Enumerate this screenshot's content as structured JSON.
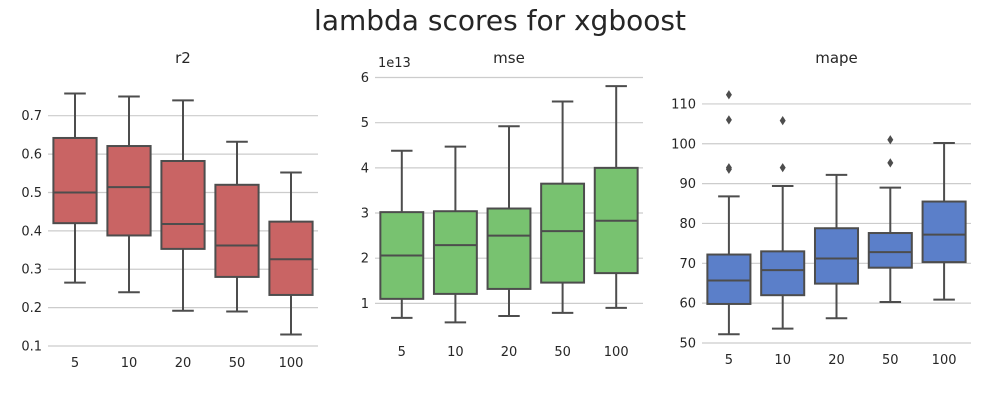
{
  "figure": {
    "title": "lambda scores for xgboost"
  },
  "chart_data": [
    {
      "type": "box",
      "title": "r2",
      "color": "#c96464",
      "categories": [
        "5",
        "10",
        "20",
        "50",
        "100"
      ],
      "ylim": [
        0.1,
        0.78
      ],
      "yticks": [
        0.1,
        0.2,
        0.3,
        0.4,
        0.5,
        0.6,
        0.7
      ],
      "ytick_labels": [
        "0.1",
        "0.2",
        "0.3",
        "0.4",
        "0.5",
        "0.6",
        "0.7"
      ],
      "offset_label": "",
      "grid": true,
      "boxes": [
        {
          "min": 0.265,
          "q1": 0.42,
          "median": 0.5,
          "q3": 0.642,
          "max": 0.758,
          "outliers": []
        },
        {
          "min": 0.24,
          "q1": 0.388,
          "median": 0.514,
          "q3": 0.621,
          "max": 0.75,
          "outliers": []
        },
        {
          "min": 0.192,
          "q1": 0.353,
          "median": 0.418,
          "q3": 0.582,
          "max": 0.74,
          "outliers": []
        },
        {
          "min": 0.19,
          "q1": 0.28,
          "median": 0.362,
          "q3": 0.52,
          "max": 0.632,
          "outliers": []
        },
        {
          "min": 0.13,
          "q1": 0.233,
          "median": 0.326,
          "q3": 0.424,
          "max": 0.552,
          "outliers": []
        }
      ]
    },
    {
      "type": "box",
      "title": "mse",
      "color": "#78c270",
      "categories": [
        "5",
        "10",
        "20",
        "50",
        "100"
      ],
      "ylim": [
        0.3,
        6.1
      ],
      "yticks": [
        1,
        2,
        3,
        4,
        5,
        6
      ],
      "ytick_labels": [
        "1",
        "2",
        "3",
        "4",
        "5",
        "6"
      ],
      "offset_label": "1e13",
      "grid": true,
      "boxes": [
        {
          "min": 0.68,
          "q1": 1.1,
          "median": 2.06,
          "q3": 3.02,
          "max": 4.38,
          "outliers": []
        },
        {
          "min": 0.58,
          "q1": 1.21,
          "median": 2.29,
          "q3": 3.04,
          "max": 4.47,
          "outliers": []
        },
        {
          "min": 0.72,
          "q1": 1.32,
          "median": 2.5,
          "q3": 3.1,
          "max": 4.92,
          "outliers": []
        },
        {
          "min": 0.79,
          "q1": 1.46,
          "median": 2.6,
          "q3": 3.65,
          "max": 5.47,
          "outliers": []
        },
        {
          "min": 0.9,
          "q1": 1.67,
          "median": 2.83,
          "q3": 4.0,
          "max": 5.81,
          "outliers": []
        }
      ]
    },
    {
      "type": "box",
      "title": "mape",
      "color": "#5b7fc9",
      "categories": [
        "5",
        "10",
        "20",
        "50",
        "100"
      ],
      "ylim": [
        50,
        115
      ],
      "yticks": [
        50,
        60,
        70,
        80,
        90,
        100,
        110
      ],
      "ytick_labels": [
        "50",
        "60",
        "70",
        "80",
        "90",
        "100",
        "110"
      ],
      "offset_label": "",
      "grid": true,
      "boxes": [
        {
          "min": 52.2,
          "q1": 59.8,
          "median": 65.7,
          "q3": 72.2,
          "max": 86.8,
          "outliers": [
            93.6,
            94.0,
            106.0,
            112.3
          ]
        },
        {
          "min": 53.6,
          "q1": 62.0,
          "median": 68.3,
          "q3": 73.0,
          "max": 89.4,
          "outliers": [
            94.0,
            105.8
          ]
        },
        {
          "min": 56.2,
          "q1": 64.9,
          "median": 71.2,
          "q3": 78.8,
          "max": 92.2,
          "outliers": []
        },
        {
          "min": 60.3,
          "q1": 68.9,
          "median": 72.8,
          "q3": 77.6,
          "max": 89.0,
          "outliers": [
            95.2,
            101.0
          ]
        },
        {
          "min": 60.9,
          "q1": 70.3,
          "median": 77.2,
          "q3": 85.5,
          "max": 100.2,
          "outliers": []
        }
      ]
    }
  ]
}
